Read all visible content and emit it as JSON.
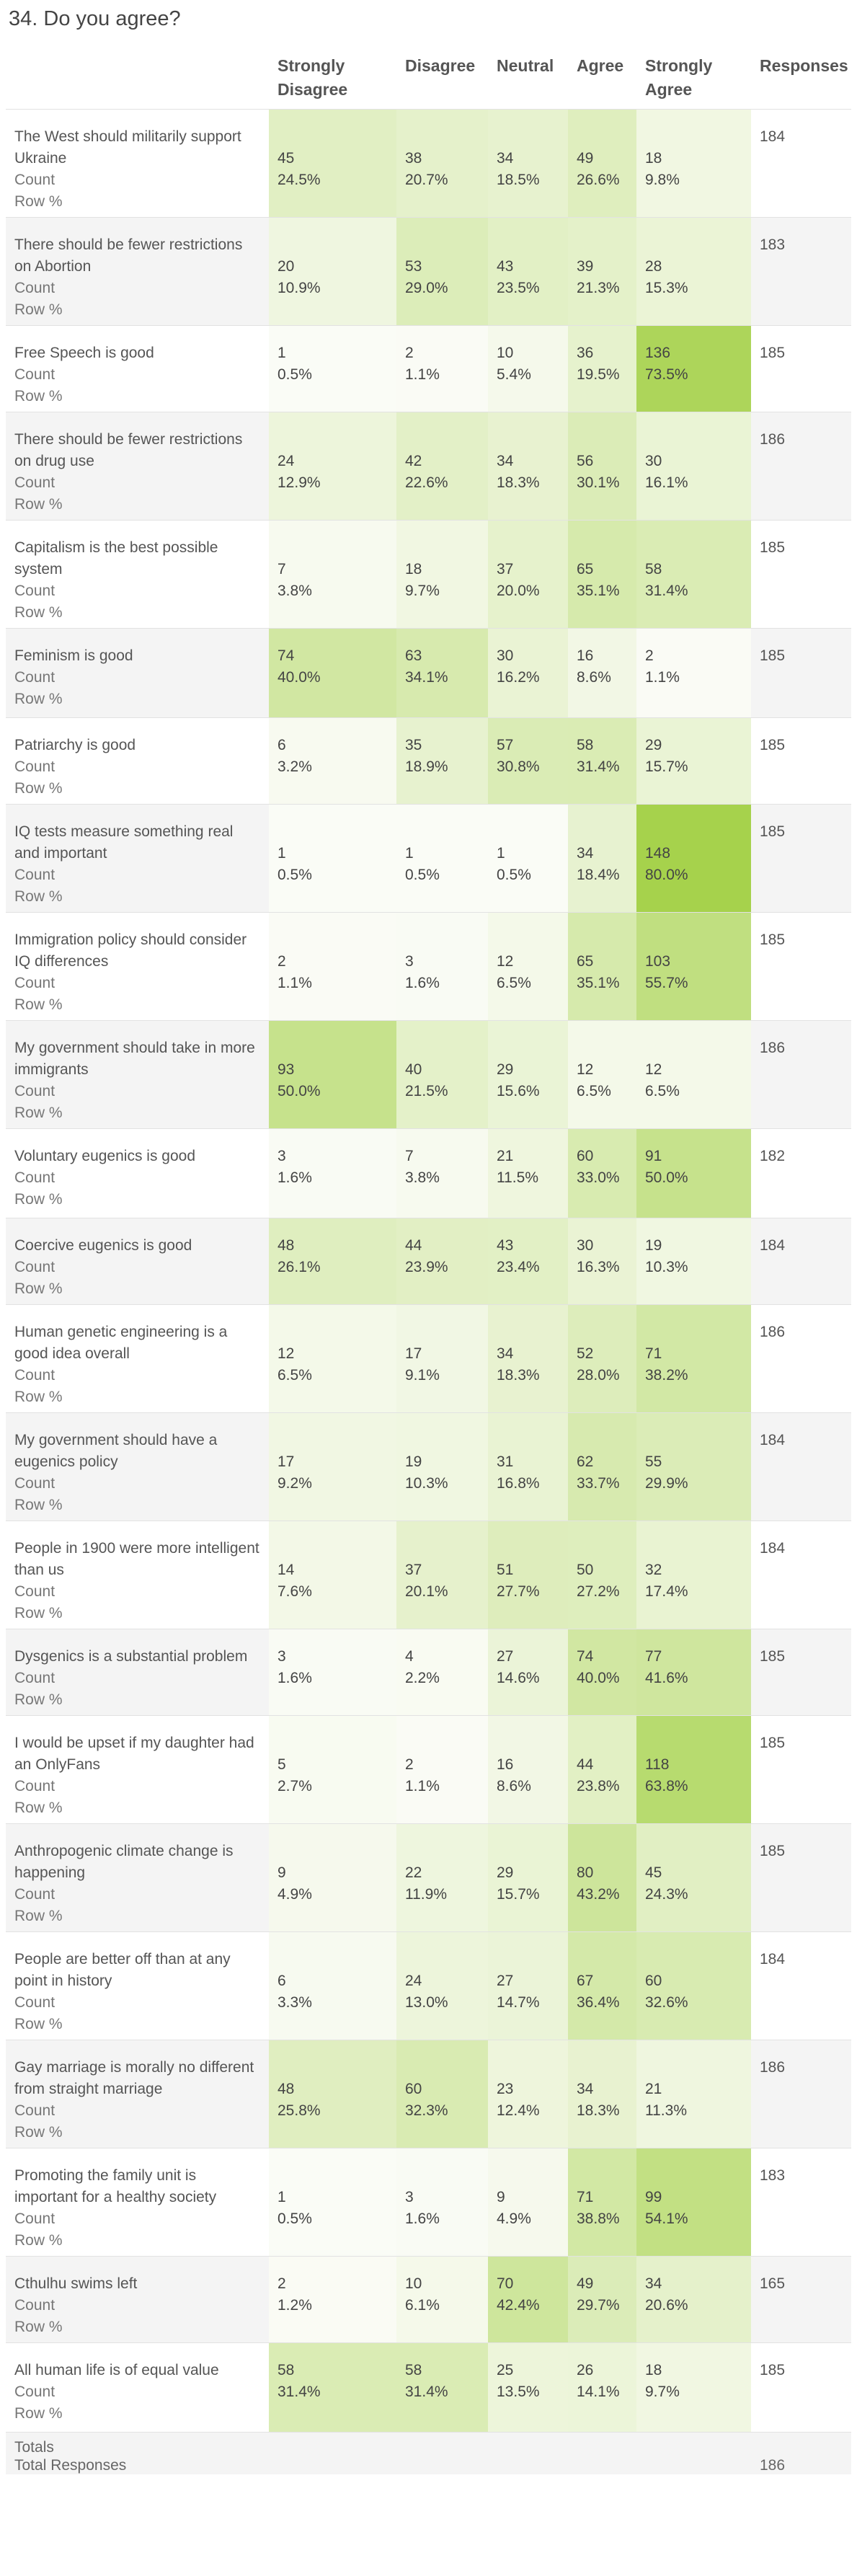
{
  "title": "34. Do you agree?",
  "headers": [
    "",
    "Strongly Disagree",
    "Disagree",
    "Neutral",
    "Agree",
    "Strongly Agree",
    "Responses"
  ],
  "count_label": "Count",
  "rowpct_label": "Row %",
  "rows": [
    {
      "q": "The West should militarily support Ukraine",
      "c": [
        "45",
        "38",
        "34",
        "49",
        "18"
      ],
      "p": [
        "24.5%",
        "20.7%",
        "18.5%",
        "26.6%",
        "9.8%"
      ],
      "r": "184"
    },
    {
      "q": "There should be fewer restrictions on Abortion",
      "c": [
        "20",
        "53",
        "43",
        "39",
        "28"
      ],
      "p": [
        "10.9%",
        "29.0%",
        "23.5%",
        "21.3%",
        "15.3%"
      ],
      "r": "183"
    },
    {
      "q": "Free Speech is good",
      "c": [
        "1",
        "2",
        "10",
        "36",
        "136"
      ],
      "p": [
        "0.5%",
        "1.1%",
        "5.4%",
        "19.5%",
        "73.5%"
      ],
      "r": "185"
    },
    {
      "q": "There should be fewer restrictions on drug use",
      "c": [
        "24",
        "42",
        "34",
        "56",
        "30"
      ],
      "p": [
        "12.9%",
        "22.6%",
        "18.3%",
        "30.1%",
        "16.1%"
      ],
      "r": "186"
    },
    {
      "q": "Capitalism is the best possible system",
      "c": [
        "7",
        "18",
        "37",
        "65",
        "58"
      ],
      "p": [
        "3.8%",
        "9.7%",
        "20.0%",
        "35.1%",
        "31.4%"
      ],
      "r": "185"
    },
    {
      "q": "Feminism is good",
      "c": [
        "74",
        "63",
        "30",
        "16",
        "2"
      ],
      "p": [
        "40.0%",
        "34.1%",
        "16.2%",
        "8.6%",
        "1.1%"
      ],
      "r": "185"
    },
    {
      "q": "Patriarchy is good",
      "c": [
        "6",
        "35",
        "57",
        "58",
        "29"
      ],
      "p": [
        "3.2%",
        "18.9%",
        "30.8%",
        "31.4%",
        "15.7%"
      ],
      "r": "185"
    },
    {
      "q": "IQ tests measure something real and important",
      "c": [
        "1",
        "1",
        "1",
        "34",
        "148"
      ],
      "p": [
        "0.5%",
        "0.5%",
        "0.5%",
        "18.4%",
        "80.0%"
      ],
      "r": "185"
    },
    {
      "q": "Immigration policy should consider IQ differences",
      "c": [
        "2",
        "3",
        "12",
        "65",
        "103"
      ],
      "p": [
        "1.1%",
        "1.6%",
        "6.5%",
        "35.1%",
        "55.7%"
      ],
      "r": "185"
    },
    {
      "q": "My government should take in more immigrants",
      "c": [
        "93",
        "40",
        "29",
        "12",
        "12"
      ],
      "p": [
        "50.0%",
        "21.5%",
        "15.6%",
        "6.5%",
        "6.5%"
      ],
      "r": "186"
    },
    {
      "q": "Voluntary eugenics is good",
      "c": [
        "3",
        "7",
        "21",
        "60",
        "91"
      ],
      "p": [
        "1.6%",
        "3.8%",
        "11.5%",
        "33.0%",
        "50.0%"
      ],
      "r": "182"
    },
    {
      "q": "Coercive eugenics is good",
      "c": [
        "48",
        "44",
        "43",
        "30",
        "19"
      ],
      "p": [
        "26.1%",
        "23.9%",
        "23.4%",
        "16.3%",
        "10.3%"
      ],
      "r": "184"
    },
    {
      "q": "Human genetic engineering is a good idea overall",
      "c": [
        "12",
        "17",
        "34",
        "52",
        "71"
      ],
      "p": [
        "6.5%",
        "9.1%",
        "18.3%",
        "28.0%",
        "38.2%"
      ],
      "r": "186"
    },
    {
      "q": "My government should have a eugenics policy",
      "c": [
        "17",
        "19",
        "31",
        "62",
        "55"
      ],
      "p": [
        "9.2%",
        "10.3%",
        "16.8%",
        "33.7%",
        "29.9%"
      ],
      "r": "184"
    },
    {
      "q": "People in 1900 were more intelligent than us",
      "c": [
        "14",
        "37",
        "51",
        "50",
        "32"
      ],
      "p": [
        "7.6%",
        "20.1%",
        "27.7%",
        "27.2%",
        "17.4%"
      ],
      "r": "184"
    },
    {
      "q": "Dysgenics is a substantial problem",
      "c": [
        "3",
        "4",
        "27",
        "74",
        "77"
      ],
      "p": [
        "1.6%",
        "2.2%",
        "14.6%",
        "40.0%",
        "41.6%"
      ],
      "r": "185"
    },
    {
      "q": "I would be upset if my daughter had an OnlyFans",
      "c": [
        "5",
        "2",
        "16",
        "44",
        "118"
      ],
      "p": [
        "2.7%",
        "1.1%",
        "8.6%",
        "23.8%",
        "63.8%"
      ],
      "r": "185"
    },
    {
      "q": "Anthropogenic climate change is happening",
      "c": [
        "9",
        "22",
        "29",
        "80",
        "45"
      ],
      "p": [
        "4.9%",
        "11.9%",
        "15.7%",
        "43.2%",
        "24.3%"
      ],
      "r": "185"
    },
    {
      "q": "People are better off than at any point in history",
      "c": [
        "6",
        "24",
        "27",
        "67",
        "60"
      ],
      "p": [
        "3.3%",
        "13.0%",
        "14.7%",
        "36.4%",
        "32.6%"
      ],
      "r": "184"
    },
    {
      "q": "Gay marriage is morally no different from straight marriage",
      "c": [
        "48",
        "60",
        "23",
        "34",
        "21"
      ],
      "p": [
        "25.8%",
        "32.3%",
        "12.4%",
        "18.3%",
        "11.3%"
      ],
      "r": "186"
    },
    {
      "q": "Promoting the family unit is important for a healthy society",
      "c": [
        "1",
        "3",
        "9",
        "71",
        "99"
      ],
      "p": [
        "0.5%",
        "1.6%",
        "4.9%",
        "38.8%",
        "54.1%"
      ],
      "r": "183"
    },
    {
      "q": "Cthulhu swims left",
      "c": [
        "2",
        "10",
        "70",
        "49",
        "34"
      ],
      "p": [
        "1.2%",
        "6.1%",
        "42.4%",
        "29.7%",
        "20.6%"
      ],
      "r": "165"
    },
    {
      "q": "All human life is of equal value",
      "c": [
        "58",
        "58",
        "25",
        "26",
        "18"
      ],
      "p": [
        "31.4%",
        "31.4%",
        "13.5%",
        "14.1%",
        "9.7%"
      ],
      "r": "185"
    }
  ],
  "totals": {
    "label": "Totals",
    "sub": "Total Responses",
    "value": "186"
  },
  "colors": {
    "heat_low": "#fbfcf7",
    "heat_high": "#a6d24c",
    "alt_row": "#f4f4f4"
  }
}
